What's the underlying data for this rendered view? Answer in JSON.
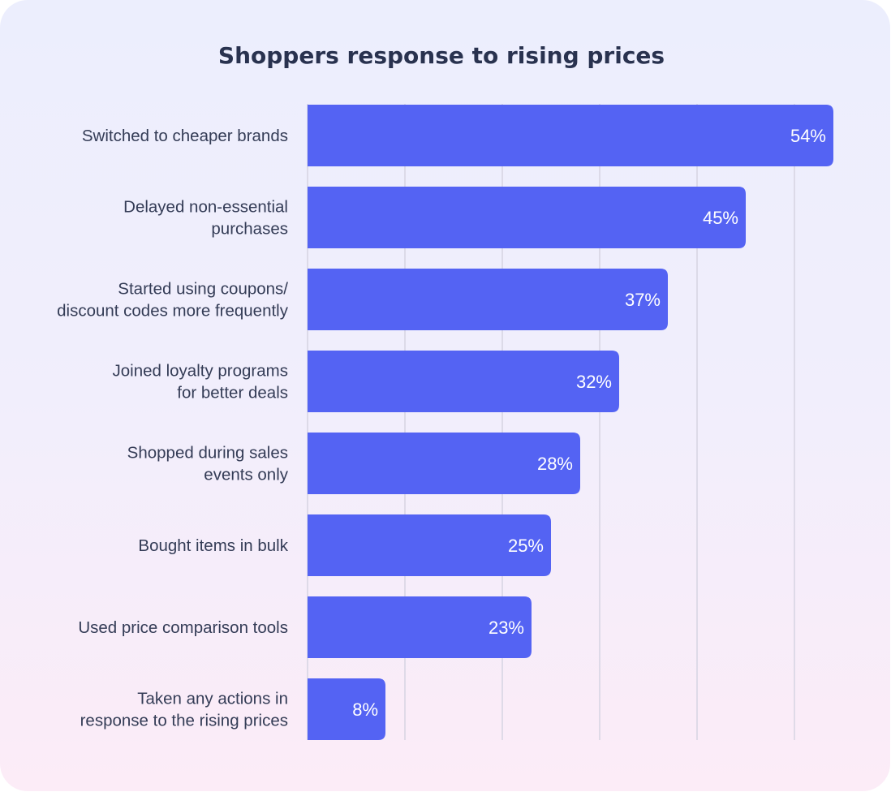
{
  "chart_data": {
    "type": "bar",
    "orientation": "horizontal",
    "title": "Shoppers response to rising prices",
    "categories": [
      [
        "Switched to cheaper brands"
      ],
      [
        "Delayed non-essential",
        "purchases"
      ],
      [
        "Started using coupons/",
        "discount codes more frequently"
      ],
      [
        "Joined loyalty programs",
        "for better deals"
      ],
      [
        "Shopped during sales",
        "events only"
      ],
      [
        "Bought items in bulk"
      ],
      [
        "Used price comparison tools"
      ],
      [
        "Taken any actions in",
        "response to the rising prices"
      ]
    ],
    "values": [
      54,
      45,
      37,
      32,
      28,
      25,
      23,
      8
    ],
    "value_labels": [
      "54%",
      "45%",
      "37%",
      "32%",
      "28%",
      "25%",
      "23%",
      "8%"
    ],
    "unit": "%",
    "xlim": [
      0,
      60
    ],
    "grid": true,
    "grid_step": 10,
    "colors": {
      "bar": "#5463f3",
      "text": "#343c56",
      "title": "#29324f",
      "grid": "#d6d4e2"
    }
  }
}
